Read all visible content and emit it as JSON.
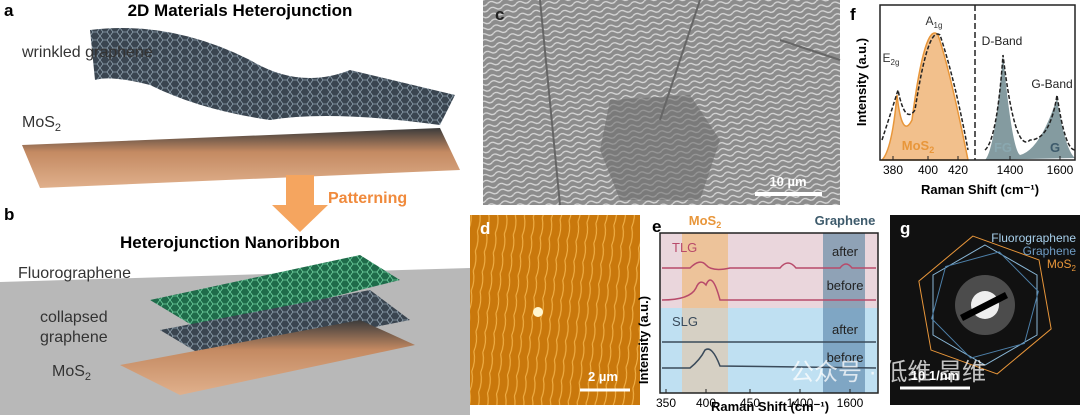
{
  "panel_a": {
    "letter": "a",
    "title": "2D Materials Heterojunction",
    "graphene_label": "wrinkled graphene",
    "mos2": {
      "base": "MoS",
      "sub": "2"
    }
  },
  "arrow_label": "Patterning",
  "panel_b": {
    "letter": "b",
    "title": "Heterojunction Nanoribbon",
    "fluoro_label": "Fluorographene",
    "collapsed_label": [
      "collapsed",
      "graphene"
    ],
    "mos2": {
      "base": "MoS",
      "sub": "2"
    }
  },
  "panel_c": {
    "letter": "c",
    "scale": "10 µm"
  },
  "panel_d": {
    "letter": "d",
    "scale": "2 µm"
  },
  "panel_e": {
    "letter": "e",
    "mos2": {
      "base": "MoS",
      "sub": "2"
    },
    "graphene": "Graphene",
    "tlg": "TLG",
    "slg": "SLG",
    "states": [
      "after",
      "before",
      "after",
      "before"
    ],
    "ylabel": "Intensity (a.u.)",
    "xlabel": "Raman Shift (cm⁻¹)",
    "xticks": [
      350,
      400,
      450,
      1400,
      1600
    ]
  },
  "panel_f": {
    "letter": "f",
    "e2g": {
      "base": "E",
      "sub": "2g"
    },
    "a1g": {
      "base": "A",
      "sub": "1g"
    },
    "d_band": "D-Band",
    "g_band": "G-Band",
    "mos2": {
      "base": "MoS",
      "sub": "2"
    },
    "fg": "FG",
    "g": "G",
    "ylabel": "Intensity (a.u.)",
    "xlabel": "Raman Shift (cm⁻¹)",
    "xticks": [
      380,
      400,
      420,
      1400,
      1600
    ]
  },
  "panel_g": {
    "letter": "g",
    "labels": [
      "Fluorographene",
      "Graphene"
    ],
    "mos2": {
      "base": "MoS",
      "sub": "2"
    },
    "scale": "10 1/nm"
  },
  "watermark": "公众号 · 低维 昂维"
}
